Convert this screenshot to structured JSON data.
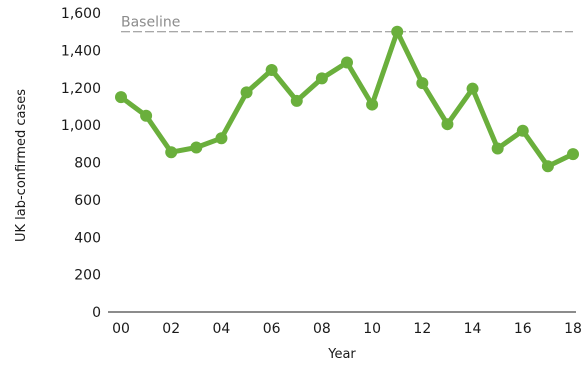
{
  "chart_data": {
    "type": "line",
    "title": "",
    "xlabel": "Year",
    "ylabel": "UK lab-confirmed cases",
    "x": [
      "00",
      "01",
      "02",
      "03",
      "04",
      "05",
      "06",
      "07",
      "08",
      "09",
      "10",
      "11",
      "12",
      "13",
      "14",
      "15",
      "16",
      "17",
      "18"
    ],
    "x_tick_labels": [
      "00",
      "02",
      "04",
      "06",
      "08",
      "10",
      "12",
      "14",
      "16",
      "18"
    ],
    "y_ticks": [
      0,
      200,
      400,
      600,
      800,
      1000,
      1200,
      1400,
      1600
    ],
    "y_tick_labels": [
      "0",
      "200",
      "400",
      "600",
      "800",
      "1,000",
      "1,200",
      "1,400",
      "1,600"
    ],
    "ylim": [
      0,
      1600
    ],
    "series": [
      {
        "values": [
          1150,
          1050,
          855,
          880,
          930,
          1175,
          1295,
          1130,
          1250,
          1335,
          1110,
          1500,
          1225,
          1005,
          1195,
          875,
          970,
          780,
          845
        ],
        "color": "#6aaf3c"
      }
    ],
    "reference_line": {
      "label": "Baseline",
      "value": 1500,
      "style": "dashed",
      "color": "#8c8c8c"
    },
    "grid": false,
    "legend": "none"
  }
}
